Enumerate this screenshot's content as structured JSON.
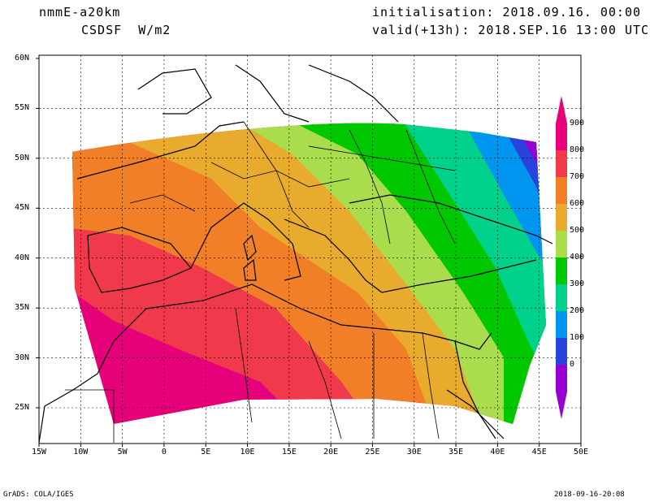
{
  "header": {
    "model": "nmmE-a20km",
    "field": "CSDSF  W/m2",
    "init": "initialisation: 2018.09.16. 00:00 UTC",
    "valid": "valid(+13h): 2018.SEP.16 13:00 UTC"
  },
  "footer": {
    "left": "GrADS: COLA/IGES",
    "right": "2018-09-16-20:08"
  },
  "axes": {
    "lon_ticks": [
      "15W",
      "10W",
      "5W",
      "0",
      "5E",
      "10E",
      "15E",
      "20E",
      "25E",
      "30E",
      "35E",
      "40E",
      "45E",
      "50E"
    ],
    "lat_ticks": [
      "60N",
      "55N",
      "50N",
      "45N",
      "40N",
      "35N",
      "30N",
      "25N"
    ]
  },
  "colorbar": {
    "labels": [
      "900",
      "800",
      "700",
      "600",
      "500",
      "400",
      "300",
      "200",
      "100",
      "0"
    ],
    "colors": [
      "#e6007a",
      "#f0394b",
      "#f07f28",
      "#e8ab2e",
      "#a9dd4e",
      "#00c800",
      "#00d28c",
      "#0096f0",
      "#2844dc",
      "#9600d2"
    ]
  }
}
